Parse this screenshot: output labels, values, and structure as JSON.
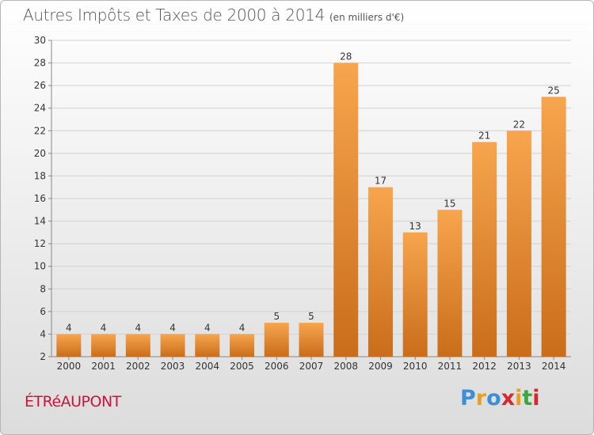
{
  "title": "Autres Impôts et Taxes de 2000 à 2014",
  "subtitle": "(en milliers d'€)",
  "place": "ÉTRéAUPONT",
  "brand": {
    "letters": [
      "P",
      "r",
      "o",
      "x",
      "i",
      "t",
      "i"
    ],
    "colors": [
      "#3a8fd8",
      "#e8a020",
      "#3a8fd8",
      "#d8282f",
      "#e8a020",
      "#3aa83a",
      "#d8282f"
    ]
  },
  "colors": {
    "bar_top": "#f7a54e",
    "bar_bottom": "#c96d1a",
    "title": "#555555",
    "place": "#c8143c"
  },
  "chart_data": {
    "type": "bar",
    "categories": [
      "2000",
      "2001",
      "2002",
      "2003",
      "2004",
      "2005",
      "2006",
      "2007",
      "2008",
      "2009",
      "2010",
      "2011",
      "2012",
      "2013",
      "2014"
    ],
    "values": [
      4,
      4,
      4,
      4,
      4,
      4,
      5,
      5,
      28,
      17,
      13,
      15,
      21,
      22,
      25
    ],
    "ylim": [
      2,
      30
    ],
    "yticks": [
      2,
      4,
      6,
      8,
      10,
      12,
      14,
      16,
      18,
      20,
      22,
      24,
      26,
      28,
      30
    ],
    "grid": true
  }
}
